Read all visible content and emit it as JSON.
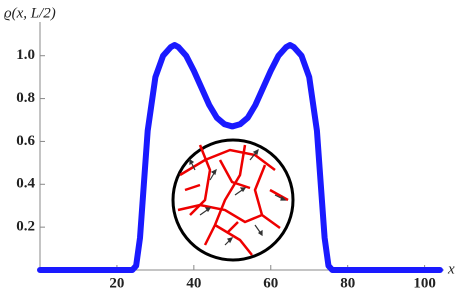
{
  "chart_data": {
    "type": "line",
    "y_label": "ϱ(x, L/2)",
    "x_label": "x",
    "x": [
      0,
      20,
      24,
      25,
      26,
      27,
      28,
      30,
      32,
      34,
      35,
      36,
      38,
      40,
      42,
      44,
      46,
      48,
      50,
      52,
      54,
      56,
      58,
      60,
      62,
      64,
      65,
      66,
      68,
      70,
      72,
      73,
      74,
      75,
      76,
      80,
      100,
      104
    ],
    "series": [
      {
        "color": "#1a1aff",
        "values": [
          0,
          0,
          0,
          0.02,
          0.15,
          0.4,
          0.65,
          0.9,
          1.0,
          1.04,
          1.05,
          1.04,
          1.0,
          0.93,
          0.85,
          0.77,
          0.71,
          0.68,
          0.67,
          0.68,
          0.71,
          0.77,
          0.85,
          0.93,
          1.0,
          1.04,
          1.05,
          1.04,
          1.0,
          0.9,
          0.65,
          0.4,
          0.15,
          0.02,
          0,
          0,
          0,
          0
        ]
      }
    ],
    "xlim": [
      0,
      104
    ],
    "ylim": [
      0,
      1.12
    ],
    "xticks": [
      20,
      40,
      60,
      80,
      100
    ],
    "yticks": [
      0.2,
      0.4,
      0.6,
      {
        "value": 0.8,
        "label": "0.8"
      },
      {
        "value": 1,
        "label": "1.0"
      }
    ]
  }
}
